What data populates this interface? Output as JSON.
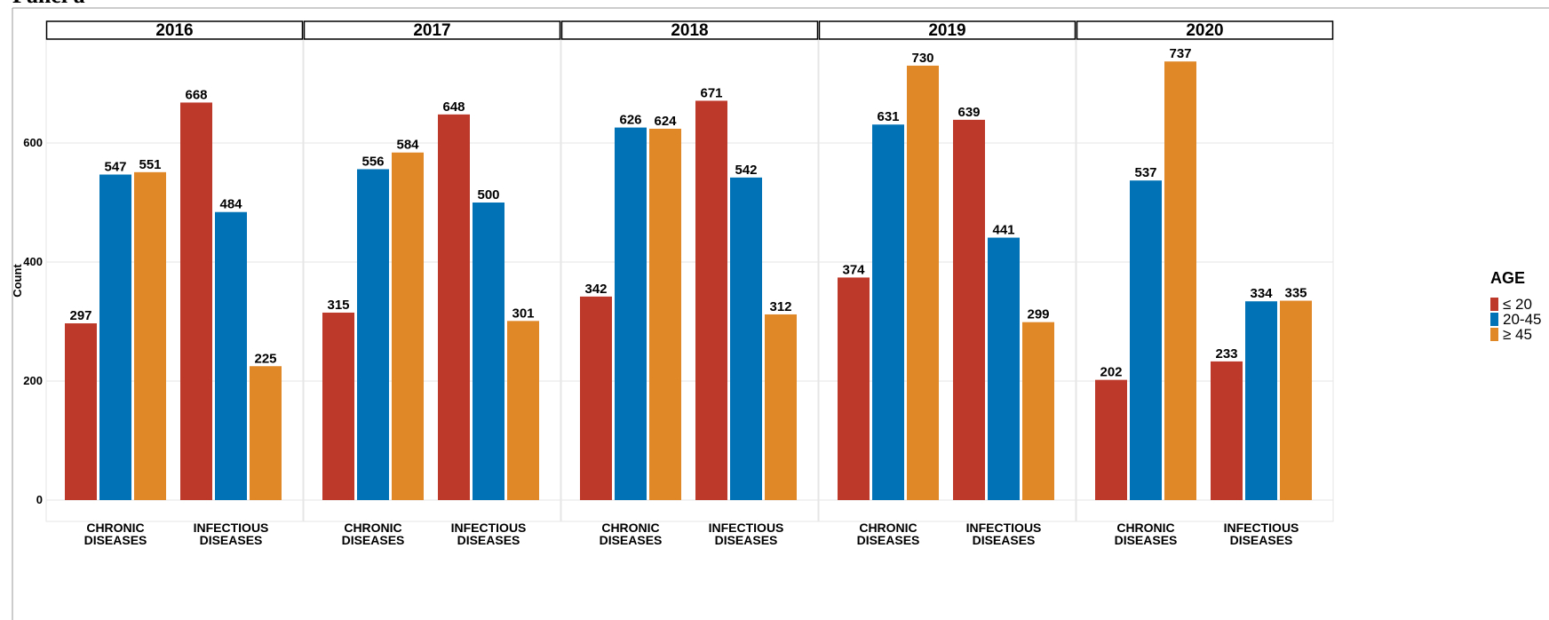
{
  "figure_title": "Panel a",
  "colors": {
    "le20": "#bd3a2b",
    "20_45": "#0072b5",
    "ge45": "#e08728",
    "grid": "#e6e6e6",
    "strip_border": "#000000"
  },
  "chart_data": {
    "type": "bar",
    "ylabel": "Count",
    "xlabel": "",
    "ylim": [
      0,
      780
    ],
    "yticks": [
      0,
      200,
      400,
      600
    ],
    "grid": true,
    "legend": {
      "title": "AGE",
      "placement": "right",
      "entries": [
        {
          "key": "le20",
          "label": "≤ 20"
        },
        {
          "key": "20_45",
          "label": "20-45"
        },
        {
          "key": "ge45",
          "label": "≥ 45"
        }
      ]
    },
    "categories": [
      [
        "CHRONIC",
        "DISEASES"
      ],
      [
        "INFECTIOUS",
        "DISEASES"
      ]
    ],
    "panels": [
      {
        "name": "2016",
        "series": [
          {
            "name": "≤ 20",
            "key": "le20",
            "values": [
              297,
              668
            ]
          },
          {
            "name": "20-45",
            "key": "20_45",
            "values": [
              547,
              484
            ]
          },
          {
            "name": "≥ 45",
            "key": "ge45",
            "values": [
              551,
              225
            ]
          }
        ]
      },
      {
        "name": "2017",
        "series": [
          {
            "name": "≤ 20",
            "key": "le20",
            "values": [
              315,
              648
            ]
          },
          {
            "name": "20-45",
            "key": "20_45",
            "values": [
              556,
              500
            ]
          },
          {
            "name": "≥ 45",
            "key": "ge45",
            "values": [
              584,
              301
            ]
          }
        ]
      },
      {
        "name": "2018",
        "series": [
          {
            "name": "≤ 20",
            "key": "le20",
            "values": [
              342,
              671
            ]
          },
          {
            "name": "20-45",
            "key": "20_45",
            "values": [
              626,
              542
            ]
          },
          {
            "name": "≥ 45",
            "key": "ge45",
            "values": [
              624,
              312
            ]
          }
        ]
      },
      {
        "name": "2019",
        "series": [
          {
            "name": "≤ 20",
            "key": "le20",
            "values": [
              374,
              639
            ]
          },
          {
            "name": "20-45",
            "key": "20_45",
            "values": [
              631,
              441
            ]
          },
          {
            "name": "≥ 45",
            "key": "ge45",
            "values": [
              730,
              299
            ]
          }
        ]
      },
      {
        "name": "2020",
        "series": [
          {
            "name": "≤ 20",
            "key": "le20",
            "values": [
              202,
              233
            ]
          },
          {
            "name": "20-45",
            "key": "20_45",
            "values": [
              537,
              334
            ]
          },
          {
            "name": "≥ 45",
            "key": "ge45",
            "values": [
              737,
              335
            ]
          }
        ]
      }
    ]
  }
}
